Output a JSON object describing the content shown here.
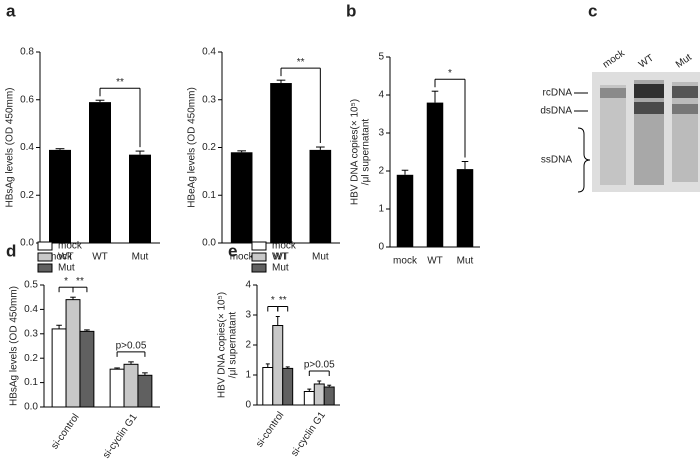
{
  "chart_data": [
    {
      "type": "bar",
      "label": "a",
      "ylabel": [
        "HBsAg levels (OD 450mm)"
      ],
      "categories": [
        "mock",
        "WT",
        "Mut"
      ],
      "values": [
        0.39,
        0.59,
        0.37
      ],
      "errors": [
        0.005,
        0.008,
        0.015
      ],
      "color": "#000000",
      "ylim": [
        0,
        0.8
      ],
      "yticks": [
        {
          "value": 0,
          "label": "0.0"
        },
        0.2,
        0.4,
        0.6,
        0.8
      ],
      "annotations": [
        {
          "text": "**",
          "between": [
            "WT",
            "Mut"
          ]
        }
      ]
    },
    {
      "type": "bar",
      "ylabel": [
        "HBeAg levels (OD 450mm)"
      ],
      "categories": [
        "mock",
        "WT",
        "Mut"
      ],
      "values": [
        0.19,
        0.335,
        0.195
      ],
      "errors": [
        0.003,
        0.006,
        0.006
      ],
      "color": "#000000",
      "ylim": [
        0,
        0.4
      ],
      "yticks": [
        {
          "value": 0,
          "label": "0.0"
        },
        0.1,
        0.2,
        0.3,
        0.4
      ],
      "annotations": [
        {
          "text": "**",
          "between": [
            "WT",
            "Mut"
          ]
        }
      ]
    },
    {
      "type": "bar",
      "label": "b",
      "ylabel": [
        "HBV DNA copies(× 10⁵)",
        "/μl supernatant"
      ],
      "categories": [
        "mock",
        "WT",
        "Mut"
      ],
      "values": [
        1.9,
        3.8,
        2.05
      ],
      "errors": [
        0.12,
        0.3,
        0.2
      ],
      "color": "#000000",
      "ylim": [
        0,
        5
      ],
      "yticks": [
        0,
        1,
        2,
        3,
        4,
        5
      ],
      "annotations": [
        {
          "text": "*",
          "between": [
            "WT",
            "Mut"
          ]
        }
      ]
    },
    {
      "type": "blot",
      "label": "c",
      "lanes": [
        "mock",
        "WT",
        "Mut"
      ],
      "markers": [
        "rcDNA",
        "dsDNA",
        "ssDNA"
      ]
    },
    {
      "type": "grouped-bar",
      "label": "d",
      "ylabel": [
        "HBsAg levels (OD 450mm)"
      ],
      "categories": [
        "si-control",
        "si-cyclin G1"
      ],
      "series": [
        {
          "name": "mock",
          "color": "#ffffff",
          "values": [
            0.32,
            0.155
          ],
          "errors": [
            0.015,
            0.005
          ]
        },
        {
          "name": "WT",
          "color": "#c8c8c8",
          "values": [
            0.44,
            0.175
          ],
          "errors": [
            0.01,
            0.01
          ]
        },
        {
          "name": "Mut",
          "color": "#606060",
          "values": [
            0.31,
            0.13
          ],
          "errors": [
            0.006,
            0.01
          ]
        }
      ],
      "ylim": [
        0,
        0.5
      ],
      "yticks": [
        {
          "value": 0,
          "label": "0.0"
        },
        0.1,
        0.2,
        0.3,
        0.4,
        0.5
      ],
      "annotations": [
        {
          "text": "*",
          "group": "si-control",
          "between": [
            "mock",
            "WT"
          ]
        },
        {
          "text": "**",
          "group": "si-control",
          "between": [
            "WT",
            "Mut"
          ]
        },
        {
          "text": "p>0.05",
          "group": "si-cyclin G1",
          "between": [
            "mock",
            "Mut"
          ]
        }
      ]
    },
    {
      "type": "grouped-bar",
      "label": "e",
      "ylabel": [
        "HBV DNA copies(× 10⁵)",
        "/μl supernatant"
      ],
      "categories": [
        "si-control",
        "si-cyclin G1"
      ],
      "series": [
        {
          "name": "mock",
          "color": "#ffffff",
          "values": [
            1.25,
            0.45
          ],
          "errors": [
            0.12,
            0.08
          ]
        },
        {
          "name": "WT",
          "color": "#c8c8c8",
          "values": [
            2.65,
            0.7
          ],
          "errors": [
            0.3,
            0.1
          ]
        },
        {
          "name": "Mut",
          "color": "#606060",
          "values": [
            1.22,
            0.6
          ],
          "errors": [
            0.05,
            0.06
          ]
        }
      ],
      "ylim": [
        0,
        4
      ],
      "yticks": [
        0,
        1,
        2,
        3,
        4
      ],
      "annotations": [
        {
          "text": "*",
          "group": "si-control",
          "between": [
            "mock",
            "WT"
          ]
        },
        {
          "text": "**",
          "group": "si-control",
          "between": [
            "WT",
            "Mut"
          ]
        },
        {
          "text": "p>0.05",
          "group": "si-cyclin G1",
          "between": [
            "mock",
            "Mut"
          ]
        }
      ]
    }
  ]
}
